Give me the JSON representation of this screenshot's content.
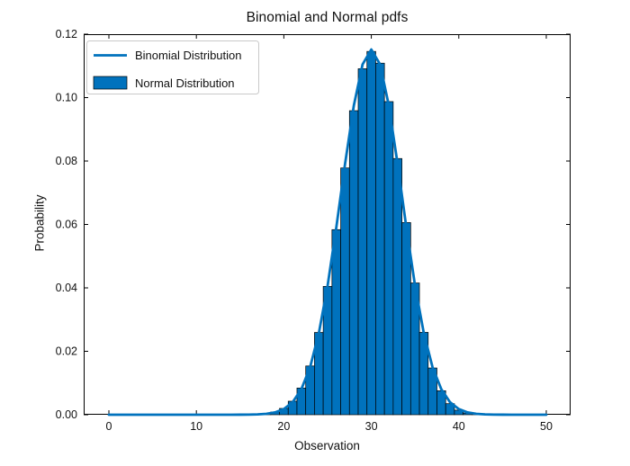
{
  "figure": {
    "background": "#ffffff",
    "accent_color": "#0072BD",
    "bar_edge_color": "#000000",
    "axis_color": "#000000",
    "text_color": "#111111",
    "legend": {
      "border_color": "#c9c9c9",
      "fill": "#ffffff",
      "entries": [
        {
          "label": "Binomial Distribution",
          "glyph": "line"
        },
        {
          "label": "Normal Distribution",
          "glyph": "patch"
        }
      ]
    }
  },
  "chart_data": {
    "type": "combo",
    "title": "Binomial and Normal pdfs",
    "xlabel": "Observation",
    "ylabel": "Probability",
    "xlim": [
      -2.88,
      52.78
    ],
    "ylim": [
      0,
      0.12
    ],
    "xticks": [
      0,
      10,
      20,
      30,
      40,
      50
    ],
    "xtick_labels": [
      "0",
      "10",
      "20",
      "30",
      "40",
      "50"
    ],
    "yticks": [
      0,
      0.02,
      0.04,
      0.06,
      0.08,
      0.1,
      0.12
    ],
    "ytick_labels": [
      "0.00",
      "0.02",
      "0.04",
      "0.06",
      "0.08",
      "0.10",
      "0.12"
    ],
    "grid": false,
    "box": true,
    "tick_direction": "in",
    "legend_position": "upper left",
    "x": [
      0,
      1,
      2,
      3,
      4,
      5,
      6,
      7,
      8,
      9,
      10,
      11,
      12,
      13,
      14,
      15,
      16,
      17,
      18,
      19,
      20,
      21,
      22,
      23,
      24,
      25,
      26,
      27,
      28,
      29,
      30,
      31,
      32,
      33,
      34,
      35,
      36,
      37,
      38,
      39,
      40,
      41,
      42,
      43,
      44,
      45,
      46,
      47,
      48,
      49,
      50
    ],
    "series": [
      {
        "name": "Binomial Distribution",
        "type": "line",
        "color": "#0072BD",
        "line_width": 2.8,
        "values": [
          0,
          0,
          0,
          0,
          0,
          0,
          0,
          0,
          0,
          0,
          0,
          0,
          0,
          1e-06,
          3e-06,
          1e-05,
          3.3e-05,
          0.000101,
          0.000286,
          0.000743,
          0.001786,
          0.003941,
          0.008035,
          0.014955,
          0.025698,
          0.04064,
          0.05913,
          0.079156,
          0.09749,
          0.11047,
          0.11517,
          0.11047,
          0.09749,
          0.079156,
          0.05913,
          0.04064,
          0.025698,
          0.014955,
          0.008035,
          0.003941,
          0.001786,
          0.000743,
          0.000286,
          0.000101,
          3.3e-05,
          1e-05,
          3e-06,
          1e-06,
          0,
          0,
          0
        ]
      },
      {
        "name": "Normal Distribution",
        "type": "bar",
        "color": "#0072BD",
        "edge_color": "#000000",
        "bar_width": 1,
        "values": [
          0,
          0,
          0,
          0,
          0,
          0,
          0,
          0,
          0,
          0,
          0,
          0,
          0,
          1e-06,
          4e-06,
          1.3e-05,
          4.1e-05,
          0.000123,
          0.000338,
          0.000855,
          0.001987,
          0.004257,
          0.008417,
          0.015371,
          0.025938,
          0.040464,
          0.058361,
          0.077815,
          0.095879,
          0.109103,
          0.114558,
          0.110862,
          0.098737,
          0.080785,
          0.060589,
          0.041547,
          0.025967,
          0.014738,
          0.007563,
          0.003491,
          0.00144,
          0.000527,
          0.000169,
          4.7e-05,
          1.1e-05,
          2e-06,
          0,
          0,
          0,
          0,
          0
        ]
      }
    ]
  }
}
